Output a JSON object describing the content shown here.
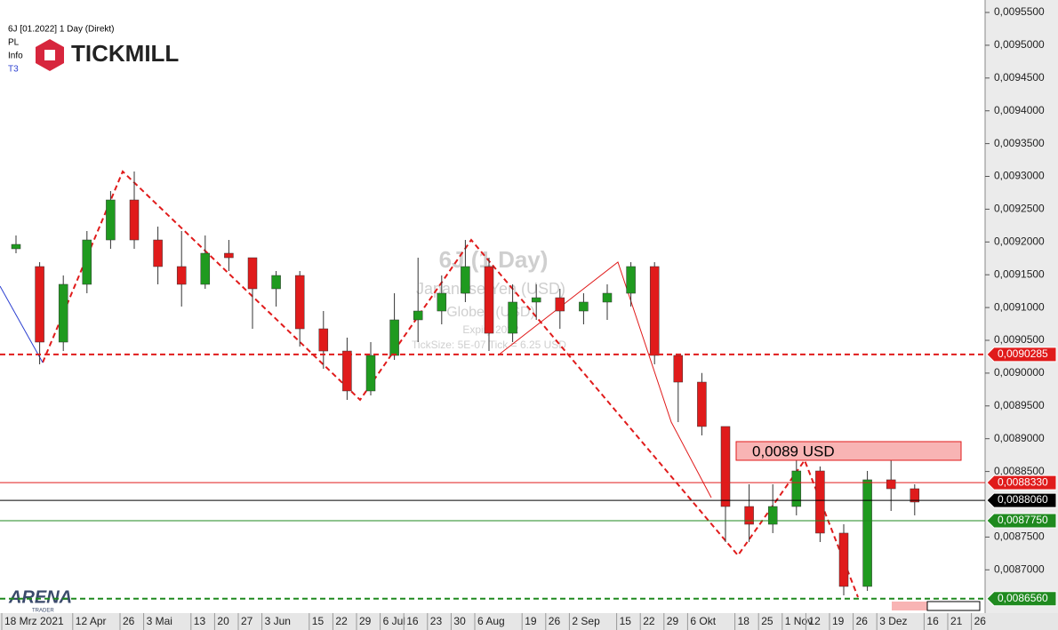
{
  "chart_data": {
    "type": "candlestick",
    "title": "6J [01.2022] 1 Day (Direkt)",
    "header_labels": [
      "PL",
      "Info",
      "T3"
    ],
    "logo": "TICKMILL",
    "brand": "ARENA",
    "brand_sub": "TRADER",
    "watermark": [
      "6J (1 Day)",
      "Japanese Yen (USD)",
      "Globex (USD)",
      "Expiry 2022",
      "TickSize: 5E-07  Tick = 6.25 USD"
    ],
    "annotation": "0,0089 USD",
    "categories": [
      "18 Mrz 2021",
      null,
      null,
      "12 Apr",
      null,
      "26",
      "3 Mai",
      null,
      "13",
      "20",
      "27",
      "3 Jun",
      null,
      "15",
      "22",
      "29",
      "6 Jul",
      "16",
      "23",
      "30",
      "6 Aug",
      null,
      "19",
      "26",
      "2 Sep",
      null,
      "15",
      "22",
      "29",
      "6 Okt",
      null,
      "18",
      "25",
      "1 Nov",
      "12",
      "19",
      "26",
      "3 Dez",
      null,
      "16",
      "21",
      "26"
    ],
    "open": [
      0.0091896,
      0.0091625,
      0.0090473,
      0.0091354,
      0.0092031,
      0.0092641,
      0.0092031,
      0.0091625,
      0.0091354,
      0.0091828,
      0.009176,
      0.0091286,
      0.0091489,
      0.0090676,
      0.0090337,
      0.0089728,
      0.009027,
      0.0090812,
      0.0090947,
      0.0091218,
      0.0091625,
      0.0090608,
      0.0091083,
      0.009115,
      0.0090947,
      0.0091083,
      0.0091218,
      0.0091625,
      0.009027,
      0.0089863,
      0.0089186,
      0.0087966,
      0.0087695,
      0.0087966,
      0.0088508,
      0.008756,
      0.0086747,
      0.0088373,
      0.0088237,
      null,
      null,
      null
    ],
    "high": [
      0.0092099,
      0.0091692,
      0.0091489,
      0.0092167,
      0.0092776,
      0.0093075,
      0.0092234,
      0.0092167,
      0.0092099,
      0.0092031,
      0.009176,
      0.0091557,
      0.0091557,
      0.0090947,
      0.0090541,
      0.0090473,
      0.0091218,
      0.009176,
      0.0091489,
      0.0092031,
      0.009176,
      0.0091354,
      0.0091354,
      0.0091286,
      0.0091218,
      0.0091354,
      0.0091692,
      0.0091692,
      0.009027,
      0.0090002,
      0.0089186,
      0.0088305,
      0.0088305,
      0.0088711,
      0.0088576,
      0.0087695,
      0.0088508,
      0.0088847,
      0.0088305,
      null,
      null,
      null
    ],
    "low": [
      0.0091828,
      0.0090134,
      0.0090337,
      0.0091218,
      0.0091896,
      0.0091896,
      0.0091354,
      0.0091015,
      0.0091286,
      0.0091557,
      0.0090676,
      0.0091015,
      0.0090405,
      0.0090066,
      0.0089592,
      0.008966,
      0.0090202,
      0.0090473,
      0.0090744,
      0.0091083,
      0.0090337,
      0.0090473,
      0.0090812,
      0.0090676,
      0.0090744,
      0.0090812,
      0.0091015,
      0.0090134,
      0.0089253,
      0.008905,
      0.0087424,
      0.0087424,
      0.008756,
      0.0087831,
      0.0087424,
      0.0086611,
      0.0086679,
      0.0087898,
      0.0087831,
      null,
      null,
      null
    ],
    "close": [
      0.0091963,
      0.0090473,
      0.0091354,
      0.0092031,
      0.0092641,
      0.0092031,
      0.0091625,
      0.0091354,
      0.0091828,
      0.009176,
      0.0091286,
      0.0091489,
      0.0090676,
      0.0090337,
      0.0089728,
      0.009027,
      0.0090812,
      0.0090947,
      0.0091218,
      0.0091625,
      0.0090608,
      0.0091083,
      0.009115,
      0.0090947,
      0.0091083,
      0.0091218,
      0.0091625,
      0.009027,
      0.0089863,
      0.0089186,
      0.0087966,
      0.0087695,
      0.0087966,
      0.0088508,
      0.008756,
      0.0086747,
      0.0088373,
      0.0088237,
      0.0088034,
      null,
      null,
      null
    ],
    "up_color": "#1f9a1f",
    "down_color": "#e01b1b",
    "ylim": [
      0.008634,
      0.009569
    ],
    "yticks": [
      {
        "value": 0.00955,
        "label": "0,0095500"
      },
      {
        "value": 0.0095,
        "label": "0,0095000"
      },
      {
        "value": 0.00945,
        "label": "0,0094500"
      },
      {
        "value": 0.0094,
        "label": "0,0094000"
      },
      {
        "value": 0.00935,
        "label": "0,0093500"
      },
      {
        "value": 0.0093,
        "label": "0,0093000"
      },
      {
        "value": 0.00925,
        "label": "0,0092500"
      },
      {
        "value": 0.0092,
        "label": "0,0092000"
      },
      {
        "value": 0.00915,
        "label": "0,0091500"
      },
      {
        "value": 0.0091,
        "label": "0,0091000"
      },
      {
        "value": 0.00905,
        "label": "0,0090500"
      },
      {
        "value": 0.009,
        "label": "0,0090000"
      },
      {
        "value": 0.00895,
        "label": "0,0089500"
      },
      {
        "value": 0.0089,
        "label": "0,0089000"
      },
      {
        "value": 0.00885,
        "label": "0,0088500"
      },
      {
        "value": 0.00875,
        "label": "0,0087500"
      },
      {
        "value": 0.0087,
        "label": "0,0087000"
      }
    ],
    "levels": [
      {
        "value": 0.0090285,
        "label": "0,0090285",
        "color": "#e01b1b",
        "dashed": true
      },
      {
        "value": 0.008833,
        "label": "0,0088330",
        "color": "#e01b1b",
        "dashed": false
      },
      {
        "value": 0.008806,
        "label": "0,0088060",
        "color": "#000000",
        "dashed": false
      },
      {
        "value": 0.008775,
        "label": "0,0087750",
        "color": "#1f8a1f",
        "dashed": false
      },
      {
        "value": 0.008656,
        "label": "0,0086560",
        "color": "#1f8a1f",
        "dashed": true
      }
    ]
  }
}
